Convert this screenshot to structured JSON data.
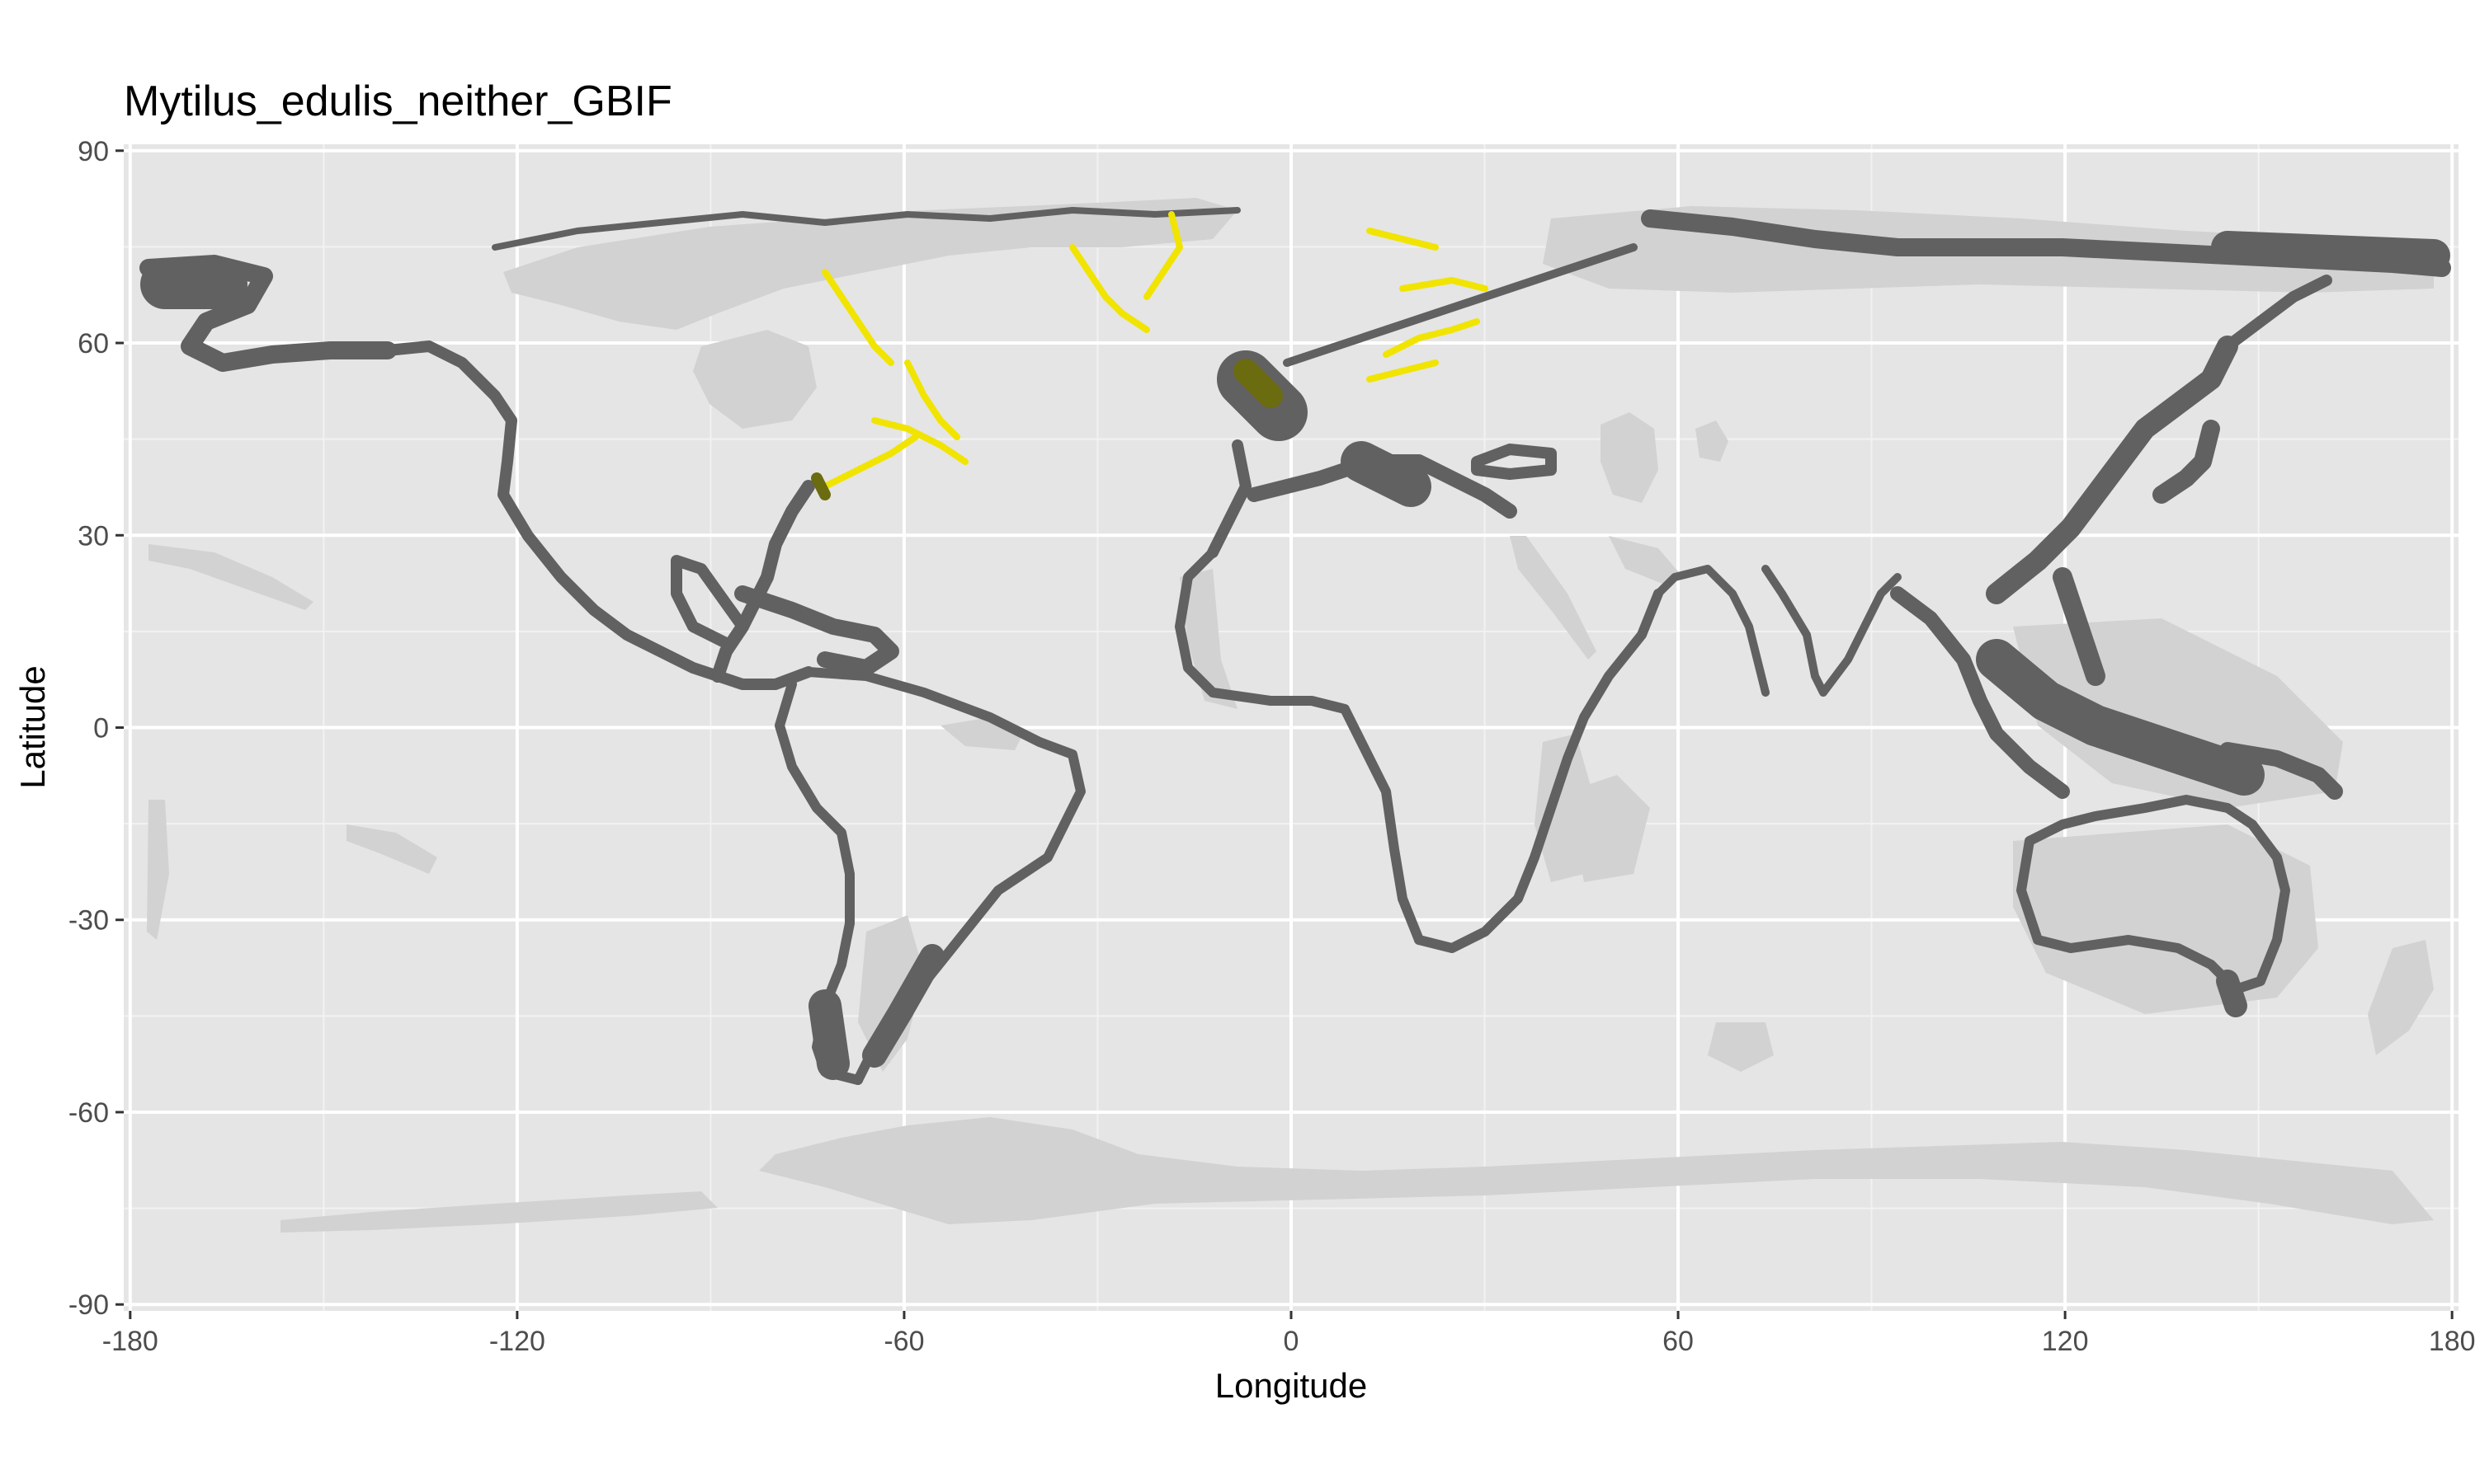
{
  "chart_data": {
    "type": "map",
    "title": "Mytilus_edulis_neither_GBIF",
    "xlabel": "Longitude",
    "ylabel": "Latitude",
    "xlim": [
      -181,
      181
    ],
    "ylim": [
      -91,
      91
    ],
    "x_ticks": [
      -180,
      -120,
      -60,
      0,
      60,
      120,
      180
    ],
    "y_ticks": [
      90,
      60,
      30,
      0,
      -30,
      -60,
      -90
    ],
    "x_tick_labels": [
      "-180",
      "-120",
      "-60",
      "0",
      "60",
      "120",
      "180"
    ],
    "y_tick_labels": [
      "90",
      "60",
      "30",
      "0",
      "-30",
      "-60",
      "-90"
    ],
    "grid": true,
    "colors": {
      "panel": "#e5e5e5",
      "grid_major": "#ffffff",
      "ocean_range": "#d0d0d0",
      "coast_presence": "#636363",
      "gbif_points": "#f2e600",
      "overlap": "#6b6b10"
    }
  }
}
